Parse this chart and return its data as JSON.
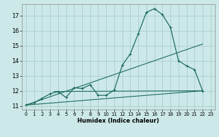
{
  "title": "",
  "xlabel": "Humidex (Indice chaleur)",
  "background_color": "#cce8e8",
  "grid_color": "#aacccc",
  "line_color": "#1a6b5a",
  "xlim": [
    -0.5,
    23.5
  ],
  "ylim": [
    10.75,
    17.75
  ],
  "yticks": [
    11,
    12,
    13,
    14,
    15,
    16,
    17
  ],
  "xticks": [
    0,
    1,
    2,
    3,
    4,
    5,
    6,
    7,
    8,
    9,
    10,
    11,
    12,
    13,
    14,
    15,
    16,
    17,
    18,
    19,
    20,
    21,
    22,
    23
  ],
  "line1_x": [
    0,
    1,
    2,
    3,
    4,
    5,
    6,
    7,
    8,
    9,
    10,
    11,
    12,
    13,
    14,
    15,
    16,
    17,
    18,
    19,
    20,
    21,
    22
  ],
  "line1_y": [
    11.05,
    11.2,
    11.5,
    11.8,
    11.95,
    11.55,
    12.2,
    12.15,
    12.4,
    11.7,
    11.7,
    12.05,
    13.7,
    14.45,
    15.8,
    17.2,
    17.45,
    17.05,
    16.2,
    14.0,
    13.65,
    13.4,
    12.0
  ],
  "line2_x": [
    0,
    22
  ],
  "line2_y": [
    11.05,
    15.1
  ],
  "line3_x": [
    0,
    22
  ],
  "line3_y": [
    11.05,
    12.0
  ],
  "line4_x": [
    3.5,
    22
  ],
  "line4_y": [
    11.95,
    12.0
  ]
}
